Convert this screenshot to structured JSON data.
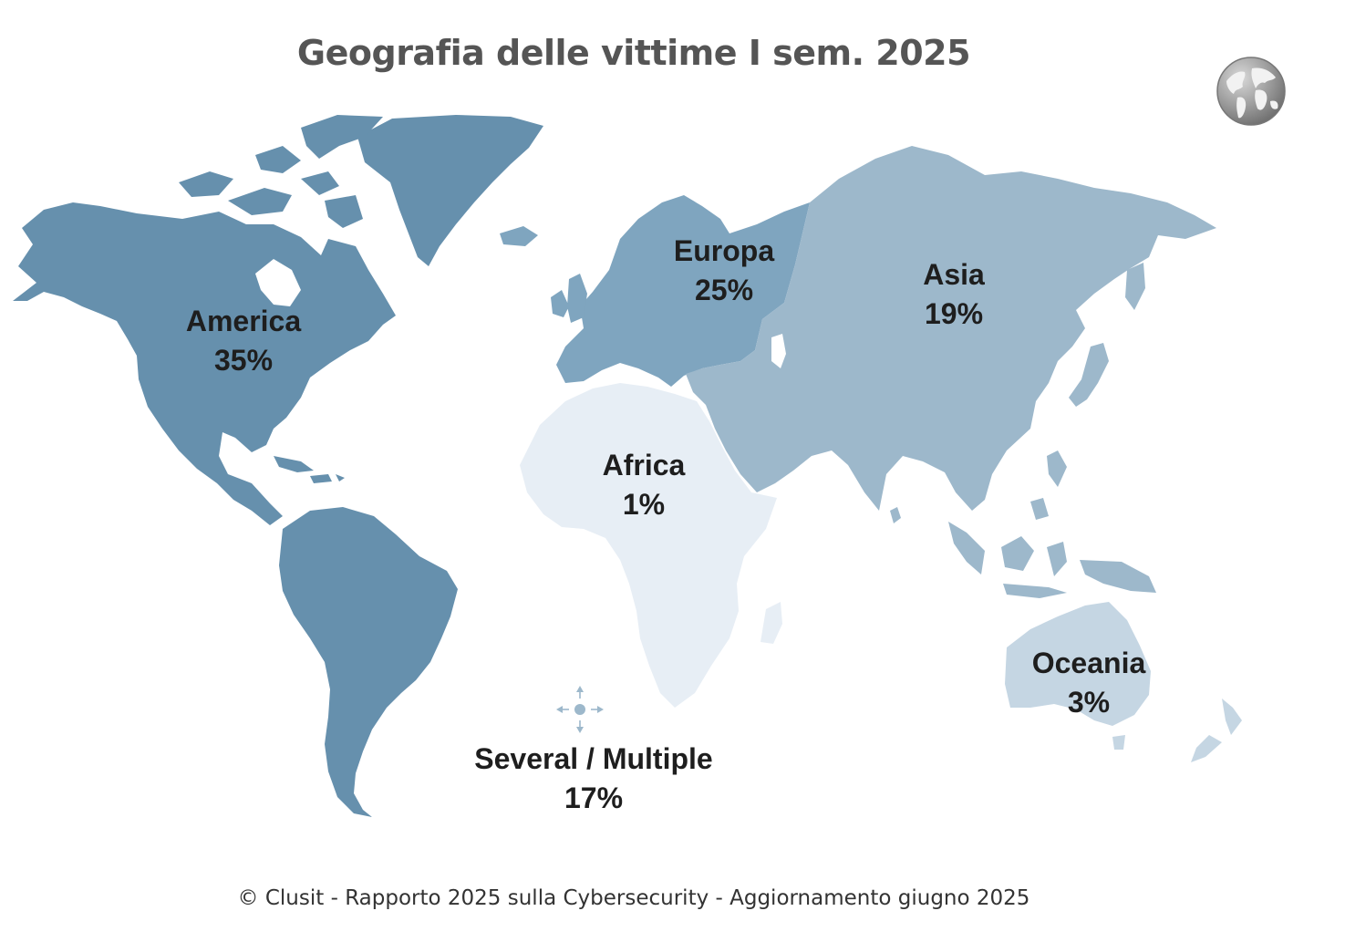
{
  "title": "Geografia delle vittime I sem. 2025",
  "footer": "© Clusit - Rapporto 2025 sulla Cybersecurity - Aggiornamento giugno 2025",
  "colors": {
    "america": "#6690ad",
    "europa": "#7fa5bf",
    "asia": "#9db8cb",
    "africa": "#e7eef5",
    "oceania": "#c5d6e3",
    "several": "#9db8cb"
  },
  "icons": {
    "corner": "globe-icon",
    "several": "multi-direction-icon"
  },
  "regions": [
    {
      "key": "america",
      "name": "America",
      "percent": "35%"
    },
    {
      "key": "europa",
      "name": "Europa",
      "percent": "25%"
    },
    {
      "key": "asia",
      "name": "Asia",
      "percent": "19%"
    },
    {
      "key": "africa",
      "name": "Africa",
      "percent": "1%"
    },
    {
      "key": "oceania",
      "name": "Oceania",
      "percent": "3%"
    },
    {
      "key": "several",
      "name": "Several / Multiple",
      "percent": "17%"
    }
  ]
}
